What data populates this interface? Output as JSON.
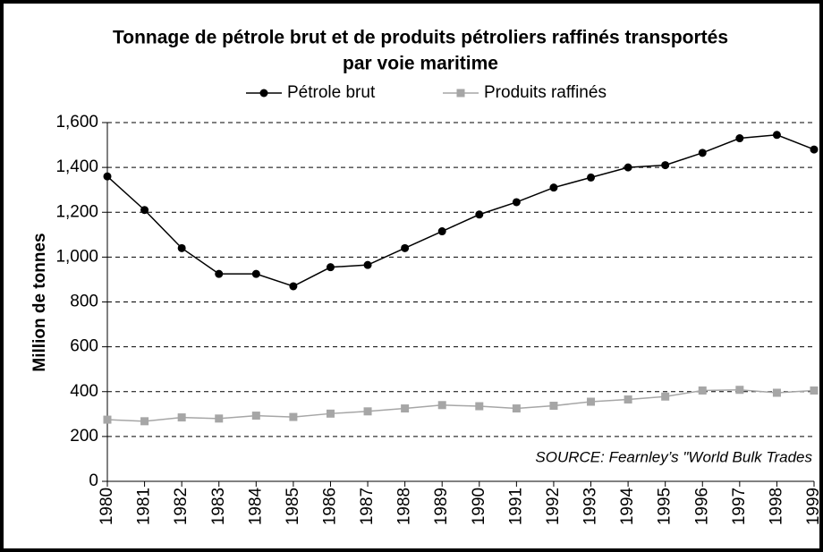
{
  "chart_data": {
    "type": "line",
    "title": [
      "Tonnage de pétrole brut et de produits pétroliers raffinés transportés",
      "par voie maritime"
    ],
    "y_label": "Million de tonnes",
    "annotation": "SOURCE: Fearnley’s \"World Bulk Trades",
    "categories": [
      "1980",
      "1981",
      "1982",
      "1983",
      "1984",
      "1985",
      "1986",
      "1987",
      "1988",
      "1989",
      "1990",
      "1991",
      "1992",
      "1993",
      "1994",
      "1995",
      "1996",
      "1997",
      "1998",
      "1999"
    ],
    "series": [
      {
        "name": "Pétrole brut",
        "color": "#000000",
        "marker": "circle",
        "values": [
          1360,
          1210,
          1040,
          925,
          925,
          870,
          955,
          965,
          1040,
          1115,
          1190,
          1245,
          1310,
          1355,
          1400,
          1410,
          1465,
          1530,
          1545,
          1480
        ]
      },
      {
        "name": "Produits raffinés",
        "color": "#a6a6a6",
        "marker": "square",
        "values": [
          275,
          268,
          285,
          280,
          293,
          287,
          302,
          312,
          325,
          340,
          335,
          325,
          337,
          355,
          365,
          378,
          405,
          408,
          395,
          405
        ]
      }
    ],
    "ylim": [
      0,
      1600
    ],
    "yticks": [
      0,
      200,
      400,
      600,
      800,
      {
        "value": 1000,
        "label": "1,000"
      },
      {
        "value": 1200,
        "label": "1,200"
      },
      {
        "value": 1400,
        "label": "1,400"
      },
      {
        "value": 1600,
        "label": "1,600"
      }
    ],
    "grid": true,
    "legend": "top"
  }
}
